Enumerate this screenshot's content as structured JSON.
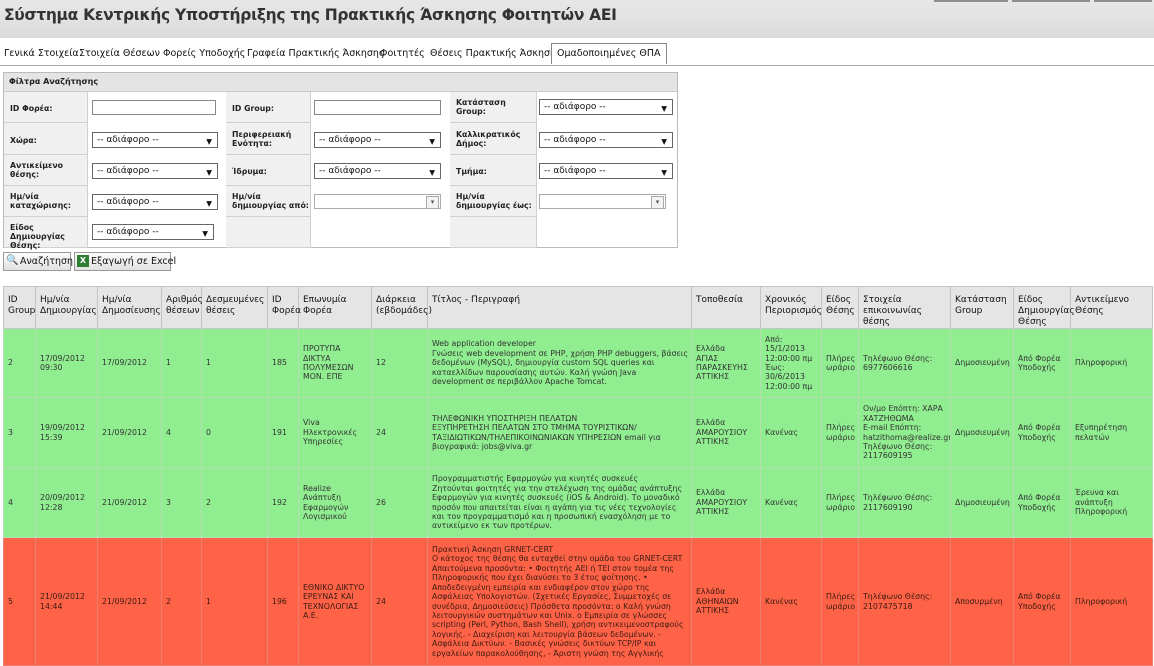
{
  "header": {
    "title": "Σύστημα Κεντρικής Υποστήριξης της Πρακτικής Άσκησης Φοιτητών ΑΕΙ"
  },
  "tabs": [
    {
      "label": "Γενικά Στοιχεία",
      "active": false
    },
    {
      "label": "Στοιχεία Θέσεων",
      "active": false
    },
    {
      "label": "Φορείς Υποδοχής",
      "active": false
    },
    {
      "label": "Γραφεία Πρακτικής Άσκησης",
      "active": false
    },
    {
      "label": "Φοιτητές",
      "active": false
    },
    {
      "label": "Θέσεις Πρακτικής Άσκησης",
      "active": false
    },
    {
      "label": "Ομαδοποιημένες ΘΠΑ",
      "active": true
    }
  ],
  "filters": {
    "title": "Φίλτρα Αναζήτησης",
    "any": "-- αδιάφορο --",
    "id_foreas": "ID Φορέα:",
    "id_group": "ID Group:",
    "katastasi_group": "Κατάσταση Group:",
    "xwra": "Χώρα:",
    "perifereiaki": "Περιφερειακή Ενότητα:",
    "kallikratikos": "Καλλικρατικός Δήμος:",
    "antikeimeno": "Αντικείμενο θέσης:",
    "idryma": "Ίδρυμα:",
    "tmima": "Τμήμα:",
    "im_kataxwrisis": "Ημ/νία καταχώρισης:",
    "im_apo": "Ημ/νία δημιουργίας από:",
    "im_ews": "Ημ/νία δημιουργίας έως:",
    "eidos": "Είδος Δημιουργίας Θέσης:"
  },
  "actions": {
    "search": "Αναζήτηση",
    "export": "Εξαγωγή σε Excel"
  },
  "table": {
    "columns": [
      "ID Group",
      "Ημ/νία Δημιουργίας",
      "Ημ/νία Δημοσίευσης",
      "Αριθμός θέσεων",
      "Δεσμευμένες θέσεις",
      "ID Φορέα",
      "Επωνυμία Φορέα",
      "Διάρκεια (εβδομάδες)",
      "Τίτλος - Περιγραφή",
      "Τοποθεσία",
      "Χρονικός Περιορισμός",
      "Είδος Θέσης",
      "Στοιχεία επικοινωνίας θέσης",
      "Κατάσταση Group",
      "Είδος Δημιουργίας Θέσης",
      "Αντικείμενο Θέσης"
    ],
    "rows": [
      {
        "status": "green",
        "cells": [
          "2",
          "17/09/2012\n09:30",
          "17/09/2012",
          "1",
          "1",
          "185",
          "ΠΡΟΤΥΠΑ\nΔΙΚΤΥΑ\nΠΟΛΥΜΕΣΩΝ\nΜΟΝ. ΕΠΕ",
          "12",
          "Web application developer\nΓνώσεις web development σε PHP, χρήση PHP debuggers, βάσεις δεδομένων (MySQL), δημιουργία custom SQL queries και καταελλίδων παρουσίασης αυτών. Καλή γνώση Java development σε περιβάλλον Apache Tomcat.",
          "Ελλάδα\nΑΓΙΑΣ\nΠΑΡΑΣΚΕΥΗΣ\nΑΤΤΙΚΗΣ",
          "Από:\n15/1/2013\n12:00:00 πμ\nΈως:\n30/6/2013\n12:00:00 πμ",
          "Πλήρες\nωράριο",
          "Τηλέφωνο Θέσης:\n6977606616",
          "Δημοσιευμένη",
          "Από Φορέα\nΥποδοχής",
          "Πληροφορική"
        ]
      },
      {
        "status": "green",
        "cells": [
          "3",
          "19/09/2012\n15:39",
          "21/09/2012",
          "4",
          "0",
          "191",
          "Viva\nΗλεκτρονικές\nΥπηρεσίες",
          "24",
          "ΤΗΛΕΦΩΝΙΚΗ ΥΠΟΣΤΗΡΙΞΗ ΠΕΛΑΤΩΝ\nΕΞΥΠΗΡΕΤΗΣΗ ΠΕΛΑΤΩΝ ΣΤΟ ΤΜΗΜΑ ΤΟΥΡΙΣΤΙΚΩΝ/ ΤΑΞΙΔΙΩΤΙΚΩΝ/ΤΗΛΕΠΙΚΟΙΝΩΝΙΑΚΩΝ ΥΠΗΡΕΣΙΩΝ email για βιογραφικά: jobs@viva.gr",
          "Ελλάδα\nΑΜΑΡΟΥΣΙΟΥ\nΑΤΤΙΚΗΣ",
          "Κανένας",
          "Πλήρες\nωράριο",
          "Ον/μο Επόπτη: ΧΑΡΑ\nΧΑΤΖΗΘΩΜΑ\nE-mail Επόπτη:\nhatzithoma@realize.gr\nΤηλέφωνο Θέσης:\n2117609195",
          "Δημοσιευμένη",
          "Από Φορέα\nΥποδοχής",
          "Εξυπηρέτηση\nπελατών"
        ]
      },
      {
        "status": "green",
        "cells": [
          "4",
          "20/09/2012\n12:28",
          "21/09/2012",
          "3",
          "2",
          "192",
          "Realize\nΑνάπτυξη\nΕφαρμογών\nΛογισμικού",
          "26",
          "Προγραμματιστής Εφαρμογών για κινητές συσκευές\nΖητούνται φοιτητές για την στελέχωση της ομάδας ανάπτυξης Εφαρμογών για κινητές συσκευές (iOS & Android). Το μοναδικό προσόν που απαιτείται είναι η αγάπη για τις νέες τεχνολογίες και τον προγραμματισμό και η προσωπική ενασχόληση με το αντικείμενο εκ των προτέρων.",
          "Ελλάδα\nΑΜΑΡΟΥΣΙΟΥ\nΑΤΤΙΚΗΣ",
          "Κανένας",
          "Πλήρες\nωράριο",
          "Τηλέφωνο Θέσης:\n2117609190",
          "Δημοσιευμένη",
          "Από Φορέα\nΥποδοχής",
          "Έρευνα και\nανάπτυξη\nΠληροφορική"
        ]
      },
      {
        "status": "red",
        "cells": [
          "5",
          "21/09/2012\n14:44",
          "21/09/2012",
          "2",
          "1",
          "196",
          "ΕΘΝΙΚΟ ΔΙΚΤΥΟ\nΕΡΕΥΝΑΣ ΚΑΙ\nΤΕΧΝΟΛΟΓΙΑΣ\nΑ.Ε.",
          "24",
          "Πρακτική Άσκηση GRNET-CERT\nΟ κάτοχος της θέσης θα ενταχθεί στην ομάδα του GRNET-CERT\nΑπαιτούμενα προσόντα: • Φοιτητής ΑΕΙ ή ΤΕΙ στον τομέα της Πληροφορικής που έχει διανύσει το 3 έτος φοίτησης. • Αποδεδειγμένη εμπειρία και ενδιαφέρον στον χώρο της Ασφάλειας Υπολογιστών. (Σχετικές Εργασίες, Συμμετοχές σε συνέδρια, Δημοσιεύσεις) Πρόσθετα προσόντα: o Καλή γνώση λειτουργικών συστημάτων και Unix. o Εμπειρία σε γλώσσες scripting (Perl, Python, Bash Shell), χρήση αντικειμενοστραφούς λογικής. - Διαχείριση και λειτουργία βάσεων δεδομένων. - Ασφάλεια Δικτύων. - Βασικές γνώσεις δικτύων TCP/IP και εργαλείων παρακολούθησης, - Άριστη γνώση της Αγγλικής",
          "Ελλάδα\nΑΘΗΝΑΙΩΝ\nΑΤΤΙΚΗΣ",
          "Κανένας",
          "Πλήρες\nωράριο",
          "Τηλέφωνο Θέσης:\n2107475718",
          "Αποσυρμένη",
          "Από Φορέα\nΥποδοχής",
          "Πληροφορική"
        ]
      }
    ]
  },
  "colors": {
    "published_row": "#90ee90",
    "withdrawn_row": "#ff6347"
  }
}
